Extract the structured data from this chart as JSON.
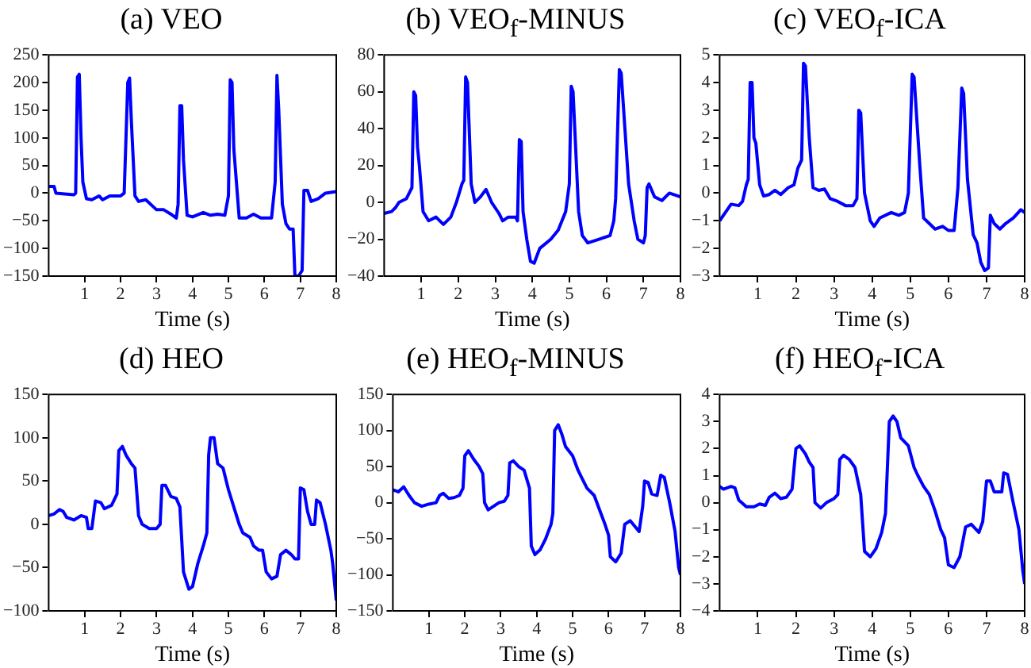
{
  "chart_data": [
    {
      "type": "line",
      "title": "(a) VEO",
      "xlabel": "Time (s)",
      "color": "#0000ff",
      "xlim": [
        0,
        8
      ],
      "xticks": [
        1,
        2,
        3,
        4,
        5,
        6,
        7,
        8
      ],
      "ylim": [
        -150,
        250
      ],
      "yticks": [
        -150,
        -100,
        -50,
        0,
        50,
        100,
        150,
        200,
        250
      ],
      "x": [
        0,
        0.15,
        0.2,
        0.7,
        0.75,
        0.8,
        0.85,
        0.9,
        0.95,
        1.05,
        1.2,
        1.4,
        1.5,
        1.7,
        2.0,
        2.1,
        2.2,
        2.25,
        2.3,
        2.4,
        2.5,
        2.7,
        3.0,
        3.2,
        3.4,
        3.55,
        3.6,
        3.65,
        3.7,
        3.75,
        3.85,
        4.0,
        4.3,
        4.5,
        4.7,
        4.9,
        5.0,
        5.05,
        5.1,
        5.15,
        5.3,
        5.5,
        5.7,
        5.9,
        6.2,
        6.3,
        6.35,
        6.4,
        6.5,
        6.6,
        6.7,
        6.8,
        6.85,
        6.95,
        7.05,
        7.1,
        7.2,
        7.3,
        7.5,
        7.7,
        8
      ],
      "values": [
        12,
        12,
        0,
        -3,
        0,
        210,
        215,
        100,
        20,
        -10,
        -12,
        -5,
        -12,
        -5,
        -5,
        0,
        200,
        208,
        130,
        -5,
        -15,
        -12,
        -30,
        -30,
        -38,
        -45,
        -20,
        158,
        158,
        60,
        -40,
        -43,
        -35,
        -40,
        -38,
        -40,
        -5,
        205,
        200,
        80,
        -45,
        -45,
        -38,
        -45,
        -45,
        20,
        213,
        150,
        -20,
        -55,
        -65,
        -65,
        -150,
        -150,
        -140,
        5,
        5,
        -15,
        -10,
        0,
        3
      ]
    },
    {
      "type": "line",
      "title": "(b) VEO$_{f}$-MINUS",
      "xlabel": "Time (s)",
      "color": "#0000ff",
      "xlim": [
        0,
        8
      ],
      "xticks": [
        1,
        2,
        3,
        4,
        5,
        6,
        7,
        8
      ],
      "ylim": [
        -40,
        80
      ],
      "yticks": [
        -40,
        -20,
        0,
        20,
        40,
        60,
        80
      ],
      "x": [
        0,
        0.2,
        0.3,
        0.4,
        0.6,
        0.7,
        0.75,
        0.8,
        0.85,
        0.9,
        0.95,
        1.05,
        1.2,
        1.4,
        1.6,
        1.8,
        1.95,
        2.1,
        2.15,
        2.2,
        2.25,
        2.35,
        2.45,
        2.6,
        2.75,
        2.9,
        3.1,
        3.2,
        3.35,
        3.55,
        3.6,
        3.65,
        3.7,
        3.75,
        3.85,
        3.95,
        4.05,
        4.2,
        4.5,
        4.7,
        4.9,
        5.0,
        5.05,
        5.1,
        5.25,
        5.35,
        5.5,
        5.8,
        6.1,
        6.2,
        6.25,
        6.35,
        6.4,
        6.5,
        6.6,
        6.75,
        6.85,
        7.0,
        7.05,
        7.1,
        7.15,
        7.3,
        7.5,
        7.7,
        8
      ],
      "values": [
        -6,
        -5,
        -3,
        0,
        2,
        6,
        8,
        60,
        58,
        30,
        20,
        -5,
        -10,
        -8,
        -12,
        -8,
        0,
        10,
        12,
        68,
        65,
        10,
        0,
        3,
        7,
        0,
        -6,
        -10,
        -8,
        -8,
        -10,
        34,
        33,
        -5,
        -20,
        -32,
        -33,
        -25,
        -20,
        -15,
        -5,
        10,
        63,
        60,
        -5,
        -18,
        -22,
        -20,
        -18,
        -10,
        2,
        72,
        70,
        40,
        10,
        -10,
        -20,
        -22,
        -18,
        8,
        10,
        3,
        1,
        5,
        3
      ]
    },
    {
      "type": "line",
      "title": "(c) VEO$_{f}$-ICA",
      "xlabel": "Time (s)",
      "color": "#0000ff",
      "xlim": [
        0,
        8
      ],
      "xticks": [
        1,
        2,
        3,
        4,
        5,
        6,
        7,
        8
      ],
      "ylim": [
        -3,
        5
      ],
      "yticks": [
        -3,
        -2,
        -1,
        0,
        1,
        2,
        3,
        4,
        5
      ],
      "x": [
        0,
        0.2,
        0.3,
        0.5,
        0.6,
        0.7,
        0.75,
        0.8,
        0.85,
        0.9,
        0.95,
        1.05,
        1.15,
        1.3,
        1.45,
        1.6,
        1.8,
        1.95,
        2.05,
        2.15,
        2.2,
        2.25,
        2.35,
        2.45,
        2.6,
        2.75,
        2.9,
        3.1,
        3.3,
        3.5,
        3.6,
        3.65,
        3.7,
        3.8,
        3.95,
        4.05,
        4.2,
        4.5,
        4.7,
        4.85,
        4.95,
        5.05,
        5.1,
        5.25,
        5.35,
        5.5,
        5.65,
        5.85,
        6.0,
        6.15,
        6.25,
        6.35,
        6.4,
        6.5,
        6.65,
        6.75,
        6.85,
        6.95,
        7.05,
        7.1,
        7.2,
        7.35,
        7.5,
        7.7,
        7.9,
        8
      ],
      "values": [
        -1,
        -0.6,
        -0.4,
        -0.45,
        -0.3,
        0.3,
        0.5,
        4,
        4,
        2,
        1.8,
        0.3,
        -0.1,
        -0.05,
        0.1,
        -0.05,
        0.2,
        0.3,
        0.9,
        1.2,
        4.7,
        4.6,
        2,
        0.2,
        0.1,
        0.15,
        -0.2,
        -0.3,
        -0.45,
        -0.45,
        -0.2,
        3,
        2.9,
        0,
        -1,
        -1.2,
        -0.9,
        -0.7,
        -0.8,
        -0.7,
        0,
        4.3,
        4.2,
        1,
        -0.9,
        -1.1,
        -1.3,
        -1.2,
        -1.35,
        -1.35,
        0.2,
        3.8,
        3.6,
        0.5,
        -1.5,
        -1.8,
        -2.5,
        -2.8,
        -2.7,
        -0.8,
        -1.1,
        -1.3,
        -1.1,
        -0.9,
        -0.6,
        -0.7
      ]
    },
    {
      "type": "line",
      "title": "(d) HEO",
      "xlabel": "Time (s)",
      "color": "#0000ff",
      "xlim": [
        0,
        8
      ],
      "xticks": [
        1,
        2,
        3,
        4,
        5,
        6,
        7,
        8
      ],
      "ylim": [
        -100,
        150
      ],
      "yticks": [
        -100,
        -50,
        0,
        50,
        100,
        150
      ],
      "x": [
        0,
        0.15,
        0.3,
        0.4,
        0.5,
        0.7,
        0.9,
        1.05,
        1.1,
        1.2,
        1.3,
        1.45,
        1.55,
        1.75,
        1.9,
        1.95,
        2.05,
        2.15,
        2.3,
        2.4,
        2.5,
        2.6,
        2.8,
        3.0,
        3.1,
        3.15,
        3.25,
        3.4,
        3.55,
        3.65,
        3.75,
        3.9,
        4.0,
        4.15,
        4.3,
        4.4,
        4.45,
        4.5,
        4.6,
        4.7,
        4.85,
        5.0,
        5.15,
        5.3,
        5.4,
        5.6,
        5.7,
        5.85,
        5.95,
        6.05,
        6.2,
        6.35,
        6.45,
        6.6,
        6.75,
        6.85,
        6.95,
        7.0,
        7.1,
        7.2,
        7.3,
        7.4,
        7.45,
        7.55,
        7.7,
        7.85,
        7.9,
        8
      ],
      "values": [
        10,
        12,
        17,
        15,
        8,
        5,
        10,
        8,
        -5,
        -5,
        27,
        25,
        18,
        22,
        35,
        85,
        90,
        80,
        70,
        65,
        10,
        0,
        -5,
        -5,
        0,
        45,
        45,
        32,
        30,
        20,
        -55,
        -75,
        -72,
        -45,
        -25,
        -10,
        80,
        100,
        100,
        70,
        65,
        40,
        20,
        0,
        -10,
        -15,
        -25,
        -30,
        -30,
        -55,
        -63,
        -60,
        -35,
        -30,
        -35,
        -40,
        -40,
        42,
        40,
        15,
        0,
        0,
        28,
        25,
        0,
        -30,
        -45,
        -88
      ]
    },
    {
      "type": "line",
      "title": "(e) HEO$_{f}$-MINUS",
      "xlabel": "Time (s)",
      "color": "#0000ff",
      "xlim": [
        0,
        8
      ],
      "xticks": [
        1,
        2,
        3,
        4,
        5,
        6,
        7,
        8
      ],
      "ylim": [
        -150,
        150
      ],
      "yticks": [
        -150,
        -100,
        -50,
        0,
        50,
        100,
        150
      ],
      "x": [
        0,
        0.15,
        0.3,
        0.45,
        0.6,
        0.8,
        1.0,
        1.2,
        1.3,
        1.4,
        1.55,
        1.7,
        1.85,
        1.95,
        2.0,
        2.1,
        2.25,
        2.4,
        2.5,
        2.55,
        2.65,
        2.8,
        2.95,
        3.1,
        3.2,
        3.25,
        3.35,
        3.5,
        3.65,
        3.8,
        3.85,
        3.95,
        4.1,
        4.25,
        4.4,
        4.45,
        4.5,
        4.6,
        4.7,
        4.8,
        5.0,
        5.15,
        5.25,
        5.4,
        5.6,
        5.75,
        5.9,
        6.0,
        6.05,
        6.2,
        6.35,
        6.45,
        6.6,
        6.85,
        6.95,
        7.0,
        7.1,
        7.2,
        7.35,
        7.45,
        7.55,
        7.7,
        7.85,
        7.95,
        8
      ],
      "values": [
        18,
        15,
        22,
        10,
        0,
        -5,
        -2,
        0,
        10,
        13,
        6,
        7,
        10,
        20,
        65,
        72,
        60,
        50,
        40,
        0,
        -10,
        -5,
        0,
        2,
        10,
        55,
        58,
        50,
        45,
        20,
        -60,
        -72,
        -65,
        -50,
        -30,
        -15,
        100,
        108,
        95,
        78,
        65,
        45,
        35,
        20,
        10,
        -10,
        -30,
        -45,
        -75,
        -82,
        -70,
        -30,
        -25,
        -40,
        -5,
        30,
        28,
        12,
        10,
        38,
        35,
        0,
        -40,
        -90,
        -100
      ]
    },
    {
      "type": "line",
      "title": "(f) HEO$_{f}$-ICA",
      "xlabel": "Time (s)",
      "color": "#0000ff",
      "xlim": [
        0,
        8
      ],
      "xticks": [
        1,
        2,
        3,
        4,
        5,
        6,
        7,
        8
      ],
      "ylim": [
        -4,
        4
      ],
      "yticks": [
        -4,
        -3,
        -2,
        -1,
        0,
        1,
        2,
        3,
        4
      ],
      "x": [
        0,
        0.1,
        0.3,
        0.4,
        0.5,
        0.7,
        0.9,
        1.05,
        1.2,
        1.3,
        1.45,
        1.6,
        1.75,
        1.9,
        2.0,
        2.1,
        2.25,
        2.35,
        2.45,
        2.5,
        2.65,
        2.8,
        3.0,
        3.1,
        3.15,
        3.25,
        3.4,
        3.55,
        3.7,
        3.8,
        3.95,
        4.1,
        4.25,
        4.35,
        4.45,
        4.55,
        4.65,
        4.75,
        4.95,
        5.1,
        5.2,
        5.35,
        5.5,
        5.65,
        5.8,
        5.9,
        6.0,
        6.15,
        6.3,
        6.45,
        6.6,
        6.8,
        6.9,
        7.0,
        7.1,
        7.2,
        7.4,
        7.45,
        7.55,
        7.7,
        7.85,
        7.95,
        8
      ],
      "values": [
        0.6,
        0.5,
        0.6,
        0.55,
        0.1,
        -0.15,
        -0.15,
        -0.05,
        -0.1,
        0.2,
        0.35,
        0.15,
        0.2,
        0.5,
        2.0,
        2.1,
        1.8,
        1.5,
        1.3,
        0,
        -0.2,
        0,
        0.15,
        0.3,
        1.6,
        1.75,
        1.6,
        1.3,
        0.3,
        -1.8,
        -2.0,
        -1.7,
        -1.1,
        -0.4,
        3.0,
        3.2,
        3.0,
        2.4,
        2.1,
        1.3,
        1.0,
        0.6,
        0.3,
        -0.3,
        -1.0,
        -1.3,
        -2.3,
        -2.4,
        -2.0,
        -0.9,
        -0.8,
        -1.1,
        -0.7,
        0.8,
        0.8,
        0.4,
        0.4,
        1.1,
        1.05,
        0,
        -1.0,
        -2.5,
        -3.0
      ]
    }
  ]
}
